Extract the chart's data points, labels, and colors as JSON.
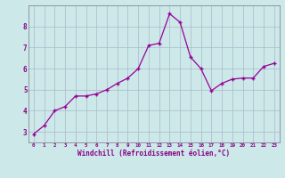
{
  "x": [
    0,
    1,
    2,
    3,
    4,
    5,
    6,
    7,
    8,
    9,
    10,
    11,
    12,
    13,
    14,
    15,
    16,
    17,
    18,
    19,
    20,
    21,
    22,
    23
  ],
  "y": [
    2.9,
    3.3,
    4.0,
    4.2,
    4.7,
    4.7,
    4.8,
    5.0,
    5.3,
    5.55,
    6.0,
    7.1,
    7.2,
    8.6,
    8.2,
    6.55,
    6.0,
    4.95,
    5.3,
    5.5,
    5.55,
    5.55,
    6.1,
    6.25
  ],
  "xlabel": "Windchill (Refroidissement éolien,°C)",
  "xlim": [
    -0.5,
    23.5
  ],
  "ylim": [
    2.5,
    9.0
  ],
  "yticks": [
    3,
    4,
    5,
    6,
    7,
    8
  ],
  "xticks": [
    0,
    1,
    2,
    3,
    4,
    5,
    6,
    7,
    8,
    9,
    10,
    11,
    12,
    13,
    14,
    15,
    16,
    17,
    18,
    19,
    20,
    21,
    22,
    23
  ],
  "line_color": "#990099",
  "marker": "+",
  "bg_color": "#cce8e8",
  "grid_color": "#aab8cc",
  "label_color": "#880088",
  "spine_color": "#888899"
}
